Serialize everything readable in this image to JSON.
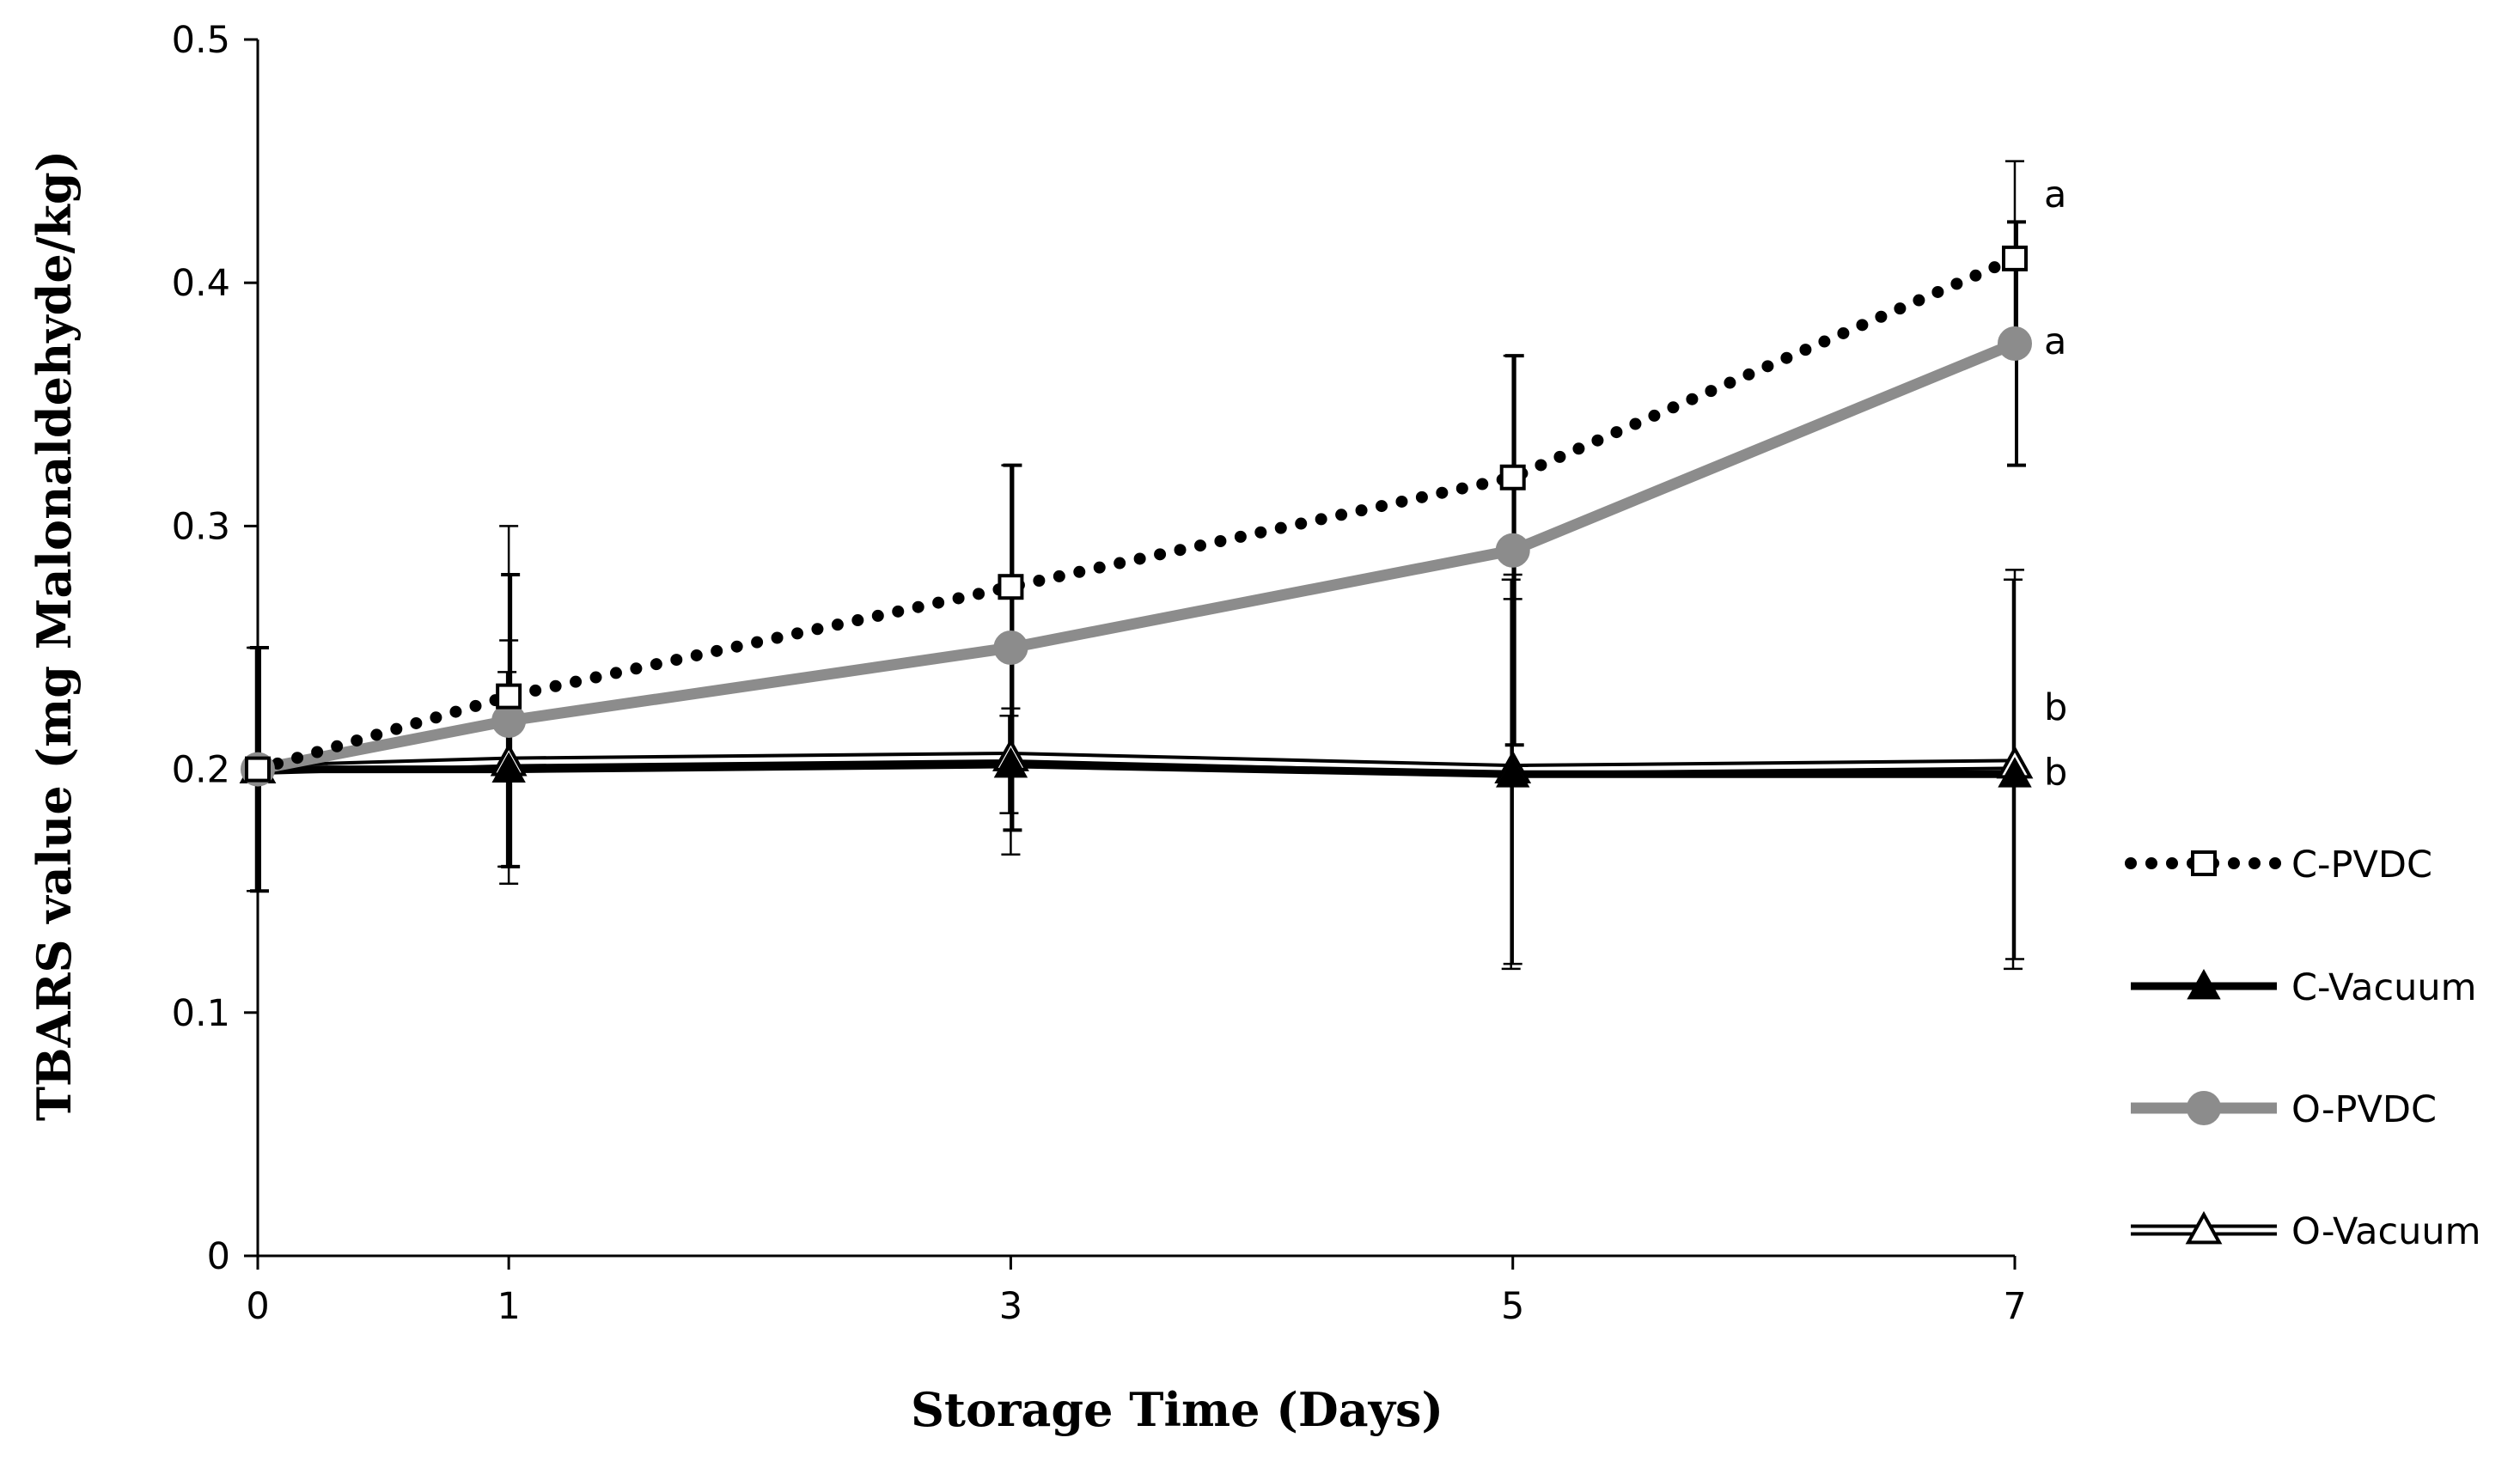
{
  "chart_data": {
    "type": "line",
    "title": "",
    "xlabel": "Storage Time  (Days)",
    "ylabel": "TBARS value (mg Malonaldehyde/kg)",
    "x": [
      0,
      1,
      3,
      5,
      7
    ],
    "x_tick_labels": [
      "0",
      "1",
      "3",
      "5",
      "7"
    ],
    "ylim": [
      0,
      0.5
    ],
    "y_ticks": [
      0,
      0.1,
      0.2,
      0.3,
      0.4,
      0.5
    ],
    "y_tick_labels": [
      "0",
      "0.1",
      "0.2",
      "0.3",
      "0.4",
      "0.5"
    ],
    "grid": false,
    "legend_position": "right",
    "series": [
      {
        "name": "C-PVDC",
        "values": [
          0.2,
          0.23,
          0.275,
          0.32,
          0.41
        ],
        "errors": [
          0.05,
          0.07,
          0.05,
          0.05,
          0.04
        ],
        "color": "#000000",
        "style": "dotted",
        "marker": "square-open"
      },
      {
        "name": "C-Vacuum",
        "values": [
          0.2,
          0.2,
          0.202,
          0.198,
          0.198
        ],
        "errors": [
          0.05,
          0.04,
          0.02,
          0.08,
          0.08
        ],
        "color": "#000000",
        "style": "solid",
        "marker": "triangle-filled"
      },
      {
        "name": "O-PVDC",
        "values": [
          0.2,
          0.22,
          0.25,
          0.29,
          0.375
        ],
        "errors": [
          0.05,
          0.06,
          0.075,
          0.08,
          0.05
        ],
        "color": "#8c8c8c",
        "style": "solid",
        "marker": "circle-filled"
      },
      {
        "name": "O-Vacuum",
        "values": [
          0.2,
          0.203,
          0.205,
          0.2,
          0.202
        ],
        "errors": [
          0.05,
          0.05,
          0.04,
          0.08,
          0.08
        ],
        "color": "#000000",
        "style": "double",
        "marker": "triangle-open"
      }
    ],
    "annotations": [
      {
        "text": "a",
        "series": "C-PVDC",
        "x": 7
      },
      {
        "text": "a",
        "series": "O-PVDC",
        "x": 7
      },
      {
        "text": "b",
        "series": "O-Vacuum",
        "x": 7
      },
      {
        "text": "b",
        "series": "C-Vacuum",
        "x": 7
      }
    ]
  }
}
